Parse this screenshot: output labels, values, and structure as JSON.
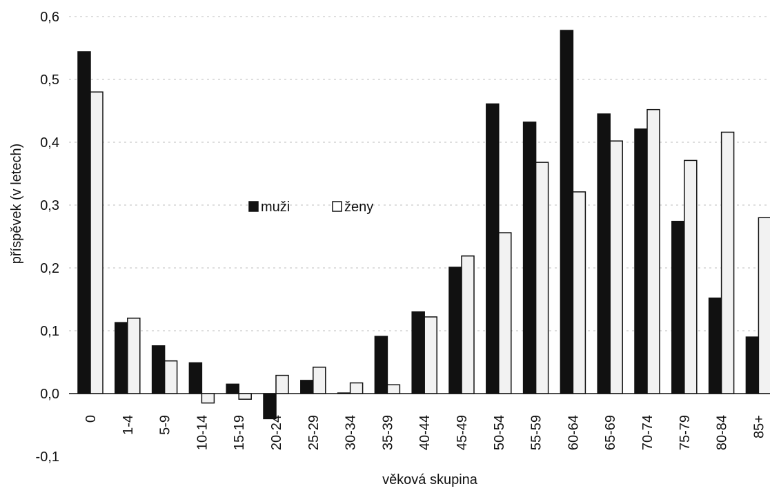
{
  "chart_data": {
    "type": "bar",
    "title": "",
    "xlabel": "věková skupina",
    "ylabel": "příspěvek (v letech)",
    "ylim": [
      -0.1,
      0.6
    ],
    "yticks": [
      "-0,1",
      "0,0",
      "0,1",
      "0,2",
      "0,3",
      "0,4",
      "0,5",
      "0,6"
    ],
    "ytick_values": [
      -0.1,
      0.0,
      0.1,
      0.2,
      0.3,
      0.4,
      0.5,
      0.6
    ],
    "grid": true,
    "legend_position": "center-left",
    "categories": [
      "0",
      "1-4",
      "5-9",
      "10-14",
      "15-19",
      "20-24",
      "25-29",
      "30-34",
      "35-39",
      "40-44",
      "45-49",
      "50-54",
      "55-59",
      "60-64",
      "65-69",
      "70-74",
      "75-79",
      "80-84",
      "85+"
    ],
    "series": [
      {
        "name": "muži",
        "color": "#111111",
        "values": [
          0.544,
          0.113,
          0.076,
          0.049,
          0.015,
          -0.04,
          0.021,
          0.001,
          0.091,
          0.13,
          0.201,
          0.461,
          0.432,
          0.578,
          0.445,
          0.421,
          0.274,
          0.152,
          0.09
        ]
      },
      {
        "name": "ženy",
        "color": "#f2f2f2",
        "values": [
          0.48,
          0.12,
          0.052,
          -0.015,
          -0.009,
          0.029,
          0.042,
          0.017,
          0.014,
          0.122,
          0.219,
          0.256,
          0.368,
          0.321,
          0.402,
          0.452,
          0.371,
          0.416,
          0.28
        ]
      }
    ]
  }
}
